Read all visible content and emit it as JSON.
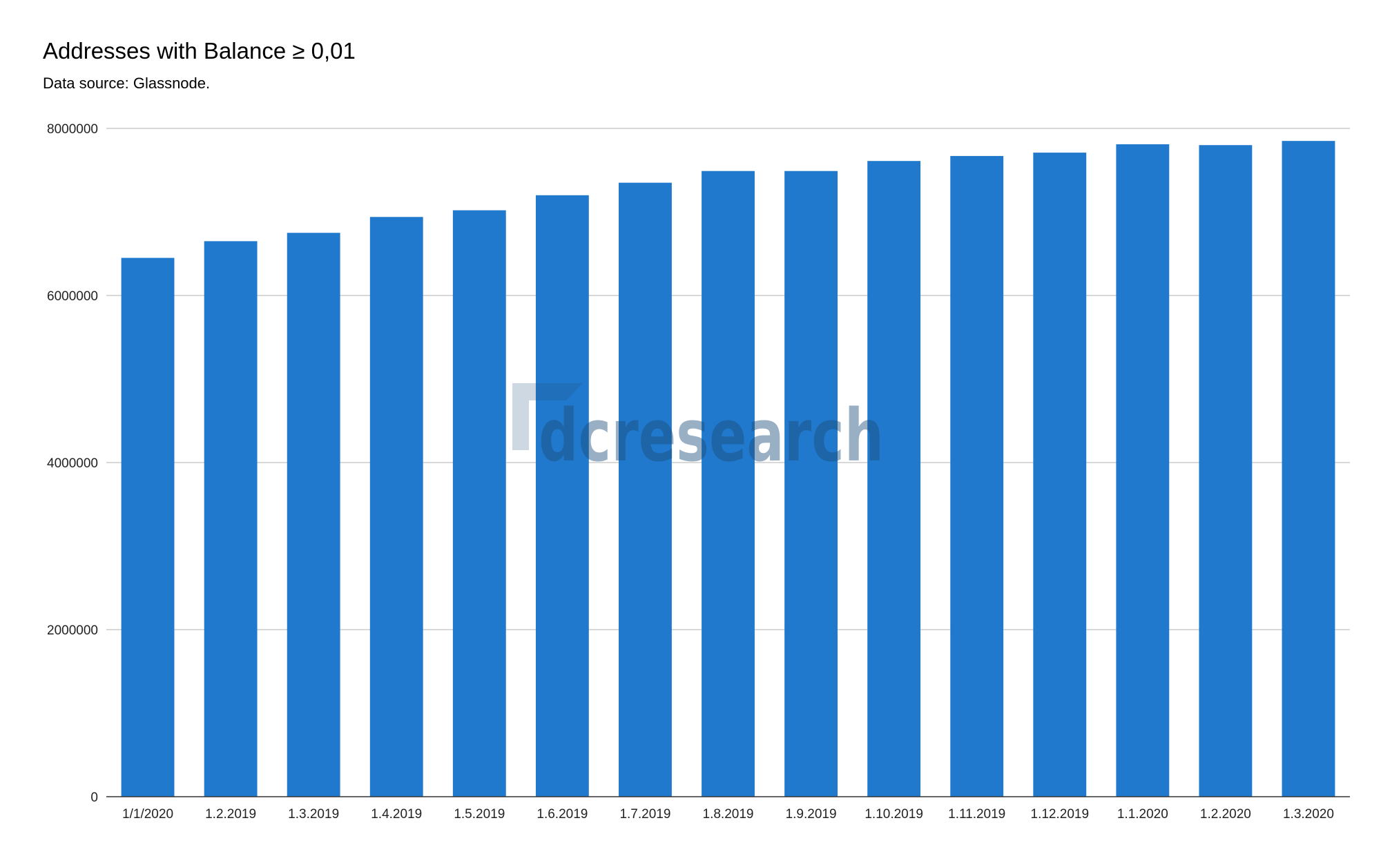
{
  "header": {
    "title": "Addresses with Balance ≥ 0,01",
    "subtitle": "Data source: Glassnode."
  },
  "watermark": {
    "text": "dcresearch",
    "icon": "dcresearch-logo-bracket"
  },
  "colors": {
    "bar": "#2079cd",
    "grid": "#cccccc",
    "axis": "#333333",
    "watermark": "#1d4d7a"
  },
  "chart_data": {
    "type": "bar",
    "title": "Addresses with Balance ≥ 0,01",
    "subtitle": "Data source: Glassnode.",
    "xlabel": "",
    "ylabel": "",
    "categories": [
      "1/1/2020",
      "1.2.2019",
      "1.3.2019",
      "1.4.2019",
      "1.5.2019",
      "1.6.2019",
      "1.7.2019",
      "1.8.2019",
      "1.9.2019",
      "1.10.2019",
      "1.11.2019",
      "1.12.2019",
      "1.1.2020",
      "1.2.2020",
      "1.3.2020"
    ],
    "values": [
      6450000,
      6650000,
      6750000,
      6940000,
      7020000,
      7200000,
      7350000,
      7490000,
      7490000,
      7610000,
      7670000,
      7710000,
      7810000,
      7800000,
      7850000
    ],
    "ylim": [
      0,
      8000000
    ],
    "yticks": [
      0,
      2000000,
      4000000,
      6000000,
      8000000
    ],
    "ytick_labels": [
      "0",
      "2000000",
      "4000000",
      "6000000",
      "8000000"
    ],
    "grid": true,
    "legend": "none"
  }
}
